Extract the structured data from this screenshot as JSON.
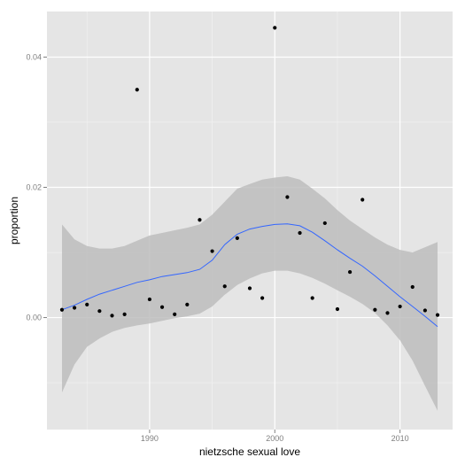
{
  "chart_data": {
    "type": "scatter",
    "title": "",
    "xlabel": "nietzsche sexual love",
    "ylabel": "proportion",
    "xlim": [
      1981.8,
      2014.2
    ],
    "ylim": [
      -0.0172,
      0.047
    ],
    "x_ticks": [
      {
        "value": 1990,
        "label": "1990"
      },
      {
        "value": 2000,
        "label": "2000"
      },
      {
        "value": 2010,
        "label": "2010"
      }
    ],
    "y_ticks": [
      {
        "value": 0,
        "label": "0.00"
      },
      {
        "value": 0.02,
        "label": "0.02"
      },
      {
        "value": 0.04,
        "label": "0.04"
      }
    ],
    "x_minor": [
      1985,
      1995,
      2005
    ],
    "y_minor": [
      -0.01,
      0.01,
      0.03
    ],
    "grid": true,
    "legend": "none",
    "colors": {
      "panel": "#e5e5e5",
      "grid": "#ffffff",
      "band": "#bdbdbd",
      "line": "#3366ff",
      "point": "#000000"
    },
    "points": [
      {
        "x": 1983,
        "y": 0.0012
      },
      {
        "x": 1984,
        "y": 0.0015
      },
      {
        "x": 1985,
        "y": 0.002
      },
      {
        "x": 1986,
        "y": 0.001
      },
      {
        "x": 1987,
        "y": 0.0003
      },
      {
        "x": 1988,
        "y": 0.0005
      },
      {
        "x": 1989,
        "y": 0.035
      },
      {
        "x": 1990,
        "y": 0.0028
      },
      {
        "x": 1991,
        "y": 0.0016
      },
      {
        "x": 1992,
        "y": 0.0005
      },
      {
        "x": 1993,
        "y": 0.002
      },
      {
        "x": 1994,
        "y": 0.015
      },
      {
        "x": 1995,
        "y": 0.0102
      },
      {
        "x": 1996,
        "y": 0.0048
      },
      {
        "x": 1997,
        "y": 0.0122
      },
      {
        "x": 1998,
        "y": 0.0045
      },
      {
        "x": 1999,
        "y": 0.003
      },
      {
        "x": 2000,
        "y": 0.0445
      },
      {
        "x": 2001,
        "y": 0.0185
      },
      {
        "x": 2002,
        "y": 0.013
      },
      {
        "x": 2003,
        "y": 0.003
      },
      {
        "x": 2004,
        "y": 0.0145
      },
      {
        "x": 2005,
        "y": 0.0013
      },
      {
        "x": 2006,
        "y": 0.007
      },
      {
        "x": 2007,
        "y": 0.0181
      },
      {
        "x": 2008,
        "y": 0.0012
      },
      {
        "x": 2009,
        "y": 0.0007
      },
      {
        "x": 2010,
        "y": 0.0017
      },
      {
        "x": 2011,
        "y": 0.0047
      },
      {
        "x": 2012,
        "y": 0.0011
      },
      {
        "x": 2013,
        "y": 0.0004
      }
    ],
    "smooth": [
      {
        "x": 1983,
        "y": 0.0012,
        "lo": -0.0115,
        "hi": 0.0143
      },
      {
        "x": 1984,
        "y": 0.0019,
        "lo": -0.0072,
        "hi": 0.012
      },
      {
        "x": 1985,
        "y": 0.0028,
        "lo": -0.0045,
        "hi": 0.011
      },
      {
        "x": 1986,
        "y": 0.0036,
        "lo": -0.0032,
        "hi": 0.0106
      },
      {
        "x": 1987,
        "y": 0.0042,
        "lo": -0.0022,
        "hi": 0.0106
      },
      {
        "x": 1988,
        "y": 0.0048,
        "lo": -0.0016,
        "hi": 0.011
      },
      {
        "x": 1989,
        "y": 0.0054,
        "lo": -0.0012,
        "hi": 0.0118
      },
      {
        "x": 1990,
        "y": 0.0058,
        "lo": -0.0009,
        "hi": 0.0126
      },
      {
        "x": 1991,
        "y": 0.0063,
        "lo": -0.0005,
        "hi": 0.013
      },
      {
        "x": 1992,
        "y": 0.0066,
        "lo": -0.0001,
        "hi": 0.0134
      },
      {
        "x": 1993,
        "y": 0.0069,
        "lo": 0.0002,
        "hi": 0.0138
      },
      {
        "x": 1994,
        "y": 0.0074,
        "lo": 0.0006,
        "hi": 0.0143
      },
      {
        "x": 1995,
        "y": 0.0088,
        "lo": 0.0017,
        "hi": 0.0158
      },
      {
        "x": 1996,
        "y": 0.0112,
        "lo": 0.0035,
        "hi": 0.0178
      },
      {
        "x": 1997,
        "y": 0.0128,
        "lo": 0.005,
        "hi": 0.0198
      },
      {
        "x": 1998,
        "y": 0.0136,
        "lo": 0.006,
        "hi": 0.0205
      },
      {
        "x": 1999,
        "y": 0.014,
        "lo": 0.0068,
        "hi": 0.0212
      },
      {
        "x": 2000,
        "y": 0.0143,
        "lo": 0.0072,
        "hi": 0.0215
      },
      {
        "x": 2001,
        "y": 0.0144,
        "lo": 0.0072,
        "hi": 0.0217
      },
      {
        "x": 2002,
        "y": 0.0141,
        "lo": 0.0068,
        "hi": 0.0212
      },
      {
        "x": 2003,
        "y": 0.0131,
        "lo": 0.0061,
        "hi": 0.0198
      },
      {
        "x": 2004,
        "y": 0.0118,
        "lo": 0.0052,
        "hi": 0.0183
      },
      {
        "x": 2005,
        "y": 0.0104,
        "lo": 0.0042,
        "hi": 0.0165
      },
      {
        "x": 2006,
        "y": 0.0091,
        "lo": 0.0032,
        "hi": 0.0149
      },
      {
        "x": 2007,
        "y": 0.0079,
        "lo": 0.0021,
        "hi": 0.0136
      },
      {
        "x": 2008,
        "y": 0.0064,
        "lo": 0.0007,
        "hi": 0.0123
      },
      {
        "x": 2009,
        "y": 0.0048,
        "lo": -0.0012,
        "hi": 0.0112
      },
      {
        "x": 2010,
        "y": 0.0032,
        "lo": -0.0035,
        "hi": 0.0104
      },
      {
        "x": 2011,
        "y": 0.0017,
        "lo": -0.0066,
        "hi": 0.01
      },
      {
        "x": 2012,
        "y": 0.0002,
        "lo": -0.0105,
        "hi": 0.0108
      },
      {
        "x": 2013,
        "y": -0.0014,
        "lo": -0.0143,
        "hi": 0.0116
      }
    ]
  }
}
